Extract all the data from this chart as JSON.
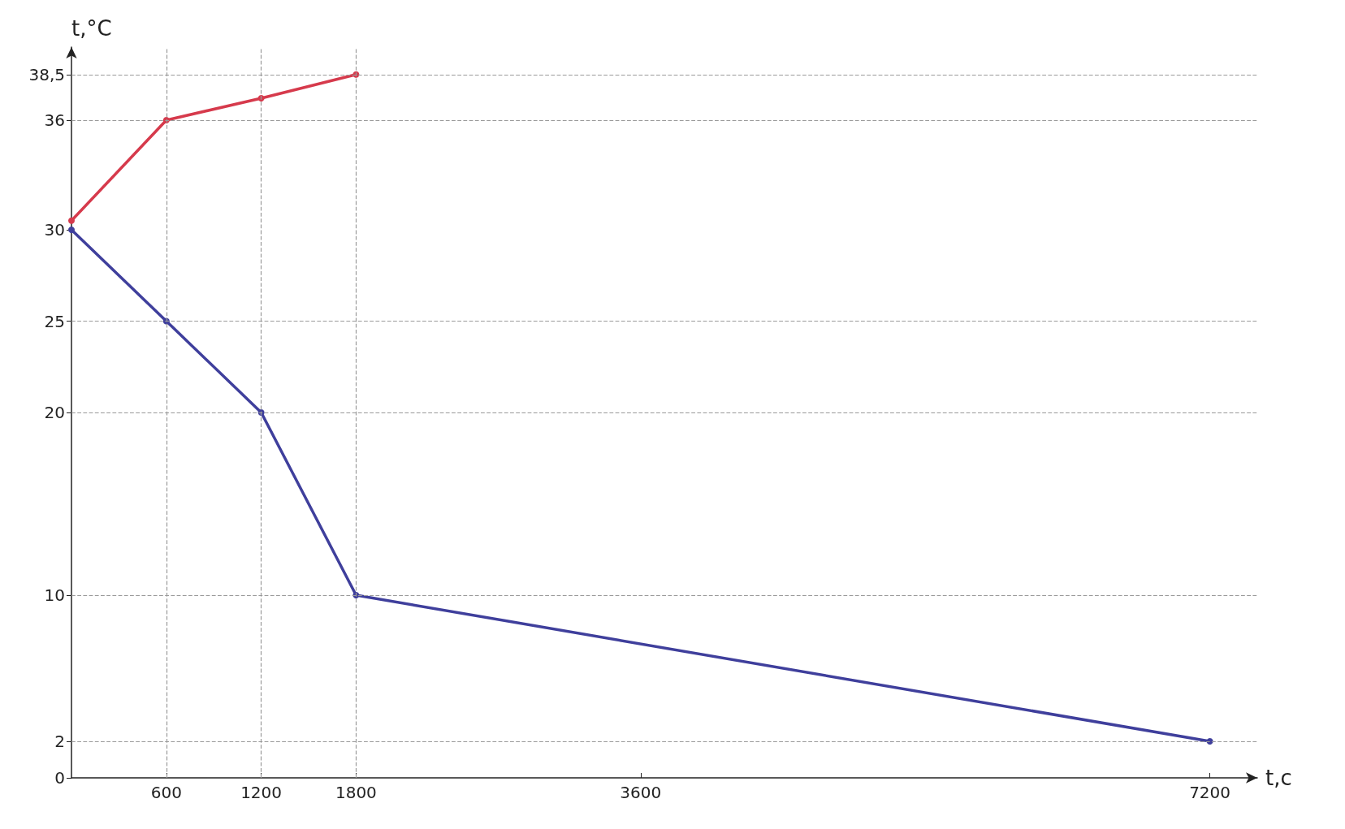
{
  "chart_data": {
    "type": "line",
    "xlabel": "t,c",
    "ylabel": "t,°C",
    "xlim": [
      0,
      7500
    ],
    "ylim": [
      0,
      40
    ],
    "xticks": [
      600,
      1200,
      1800,
      3600,
      7200
    ],
    "yticks": [
      0,
      2,
      10,
      20,
      25,
      30,
      36,
      {
        "value": 38.5,
        "label": "38,5"
      }
    ],
    "series": [
      {
        "color": "#d63a4c",
        "x": [
          0,
          600,
          1200,
          1800
        ],
        "values": [
          30.5,
          36,
          37.2,
          38.5
        ]
      },
      {
        "color": "#3f3f9c",
        "x": [
          0,
          600,
          1200,
          1800,
          7200
        ],
        "values": [
          30,
          25,
          20,
          10,
          2
        ]
      }
    ],
    "ref_lines": [
      {
        "axis": "y",
        "value": 2,
        "line_style": "dashed",
        "color": "#9a9a9a"
      },
      {
        "axis": "y",
        "value": 10,
        "line_style": "dashed",
        "color": "#9a9a9a"
      },
      {
        "axis": "y",
        "value": 20,
        "line_style": "dashed",
        "color": "#9a9a9a"
      },
      {
        "axis": "y",
        "value": 25,
        "line_style": "dashed",
        "color": "#9a9a9a"
      },
      {
        "axis": "y",
        "value": 36,
        "line_style": "dashed",
        "color": "#9a9a9a"
      },
      {
        "axis": "y",
        "value": 38.5,
        "line_style": "dashed",
        "color": "#9a9a9a"
      },
      {
        "axis": "x",
        "value": 600,
        "line_style": "dashed",
        "color": "#9a9a9a"
      },
      {
        "axis": "x",
        "value": 1200,
        "line_style": "dashed",
        "color": "#9a9a9a"
      },
      {
        "axis": "x",
        "value": 1800,
        "line_style": "dashed",
        "color": "#9a9a9a"
      }
    ],
    "grid": false,
    "marker": "circle",
    "line_style": "solid"
  }
}
